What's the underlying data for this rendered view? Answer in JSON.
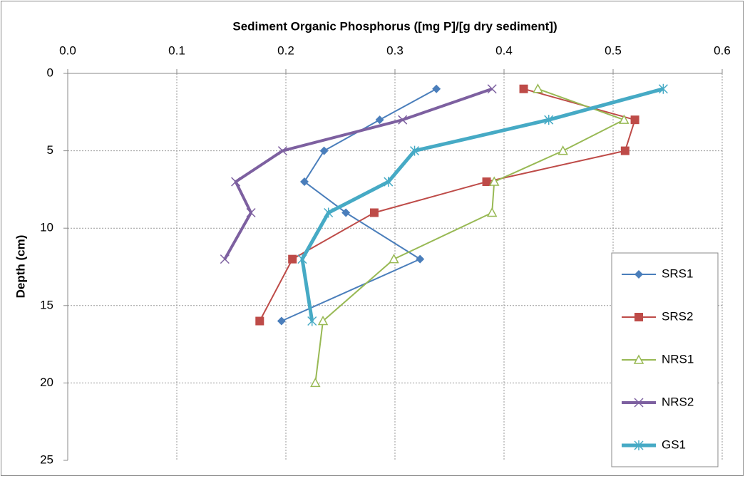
{
  "chart_data": {
    "type": "line",
    "x_label": "Sediment Organic Phosphorus ([mg P]/[g dry sediment])",
    "y_label": "Depth (cm)",
    "x_axis_position": "top",
    "y_inverted": true,
    "xlim": [
      0,
      0.6
    ],
    "xticks": [
      {
        "value": 0,
        "label": "0.0"
      },
      0.1,
      0.2,
      0.3,
      0.4,
      0.5,
      0.6
    ],
    "ylim": [
      0,
      25
    ],
    "yticks": [
      0,
      5,
      10,
      15,
      20,
      25
    ],
    "grid": true,
    "legend": "right",
    "series": [
      {
        "name": "SRS1",
        "color": "#4a7ebb",
        "marker": "diamond",
        "line_width": 2,
        "x": [
          0.338,
          0.286,
          0.235,
          0.217,
          0.255,
          0.323,
          0.196
        ],
        "y": [
          1,
          3,
          5,
          7,
          9,
          12,
          16
        ]
      },
      {
        "name": "SRS2",
        "color": "#be4b48",
        "marker": "square",
        "line_width": 2,
        "x": [
          0.418,
          0.52,
          0.511,
          0.384,
          0.281,
          0.206,
          0.176
        ],
        "y": [
          1,
          3,
          5,
          7,
          9,
          12,
          16
        ]
      },
      {
        "name": "NRS1",
        "color": "#98b954",
        "marker": "triangle",
        "line_width": 2,
        "x": [
          0.431,
          0.51,
          0.454,
          0.391,
          0.389,
          0.299,
          0.234,
          0.227
        ],
        "y": [
          1,
          3,
          5,
          7,
          9,
          12,
          16,
          20
        ]
      },
      {
        "name": "NRS2",
        "color": "#7d60a0",
        "marker": "x",
        "line_width": 4,
        "x": [
          0.389,
          0.307,
          0.197,
          0.154,
          0.168,
          0.144
        ],
        "y": [
          1,
          3,
          5,
          7,
          9,
          12
        ]
      },
      {
        "name": "GS1",
        "color": "#46aac5",
        "marker": "star",
        "line_width": 5,
        "x": [
          0.546,
          0.441,
          0.318,
          0.294,
          0.239,
          0.215,
          0.224
        ],
        "y": [
          1,
          3,
          5,
          7,
          9,
          12,
          16
        ]
      }
    ]
  }
}
